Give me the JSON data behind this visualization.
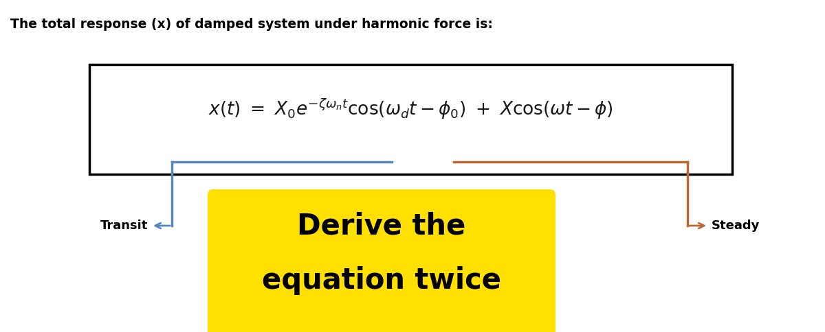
{
  "title": "The total response (x) of damped system under harmonic force is:",
  "title_fontsize": 13.5,
  "equation": "$x(t)\\ =\\ X_0 e^{-\\zeta\\omega_n t}\\cos(\\omega_d t - \\phi_0)\\ +\\ X\\cos(\\omega t - \\phi)$",
  "equation_fontsize": 19,
  "blue_line_color": "#5588bb",
  "orange_line_color": "#bb6633",
  "transit_label": "Transit",
  "steady_label": "Steady",
  "label_fontsize": 13,
  "derive_text_line1": "Derive the",
  "derive_text_line2": "equation twice",
  "derive_fontsize": 30,
  "derive_box_color": "#FFE000",
  "background_color": "#ffffff"
}
